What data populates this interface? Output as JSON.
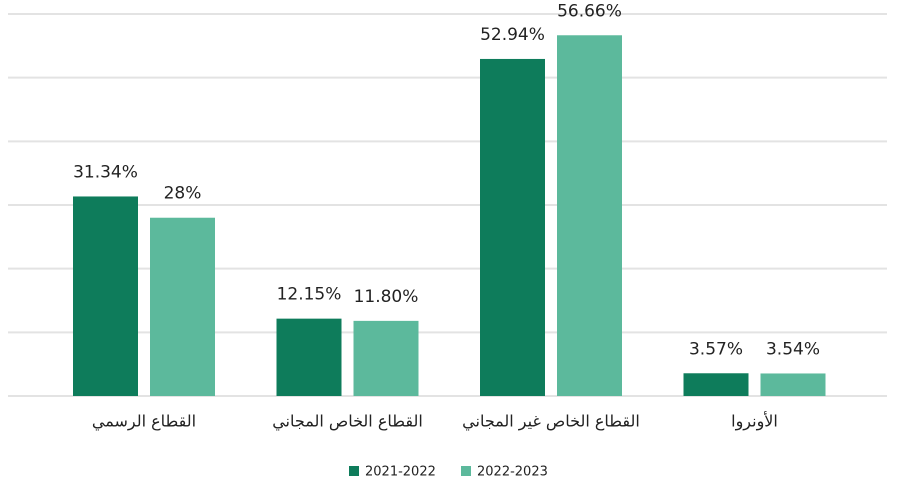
{
  "chart_data": {
    "type": "bar",
    "categories": [
      "القطاع الرسمي",
      "القطاع الخاص المجاني",
      "القطاع الخاص غير المجاني",
      "الأونروا"
    ],
    "series": [
      {
        "name": "2021-2022",
        "color": "#0e7c5b",
        "values": [
          31.34,
          12.15,
          52.94,
          3.57
        ],
        "value_labels": [
          "31.34%",
          "12.15%",
          "52.94%",
          "3.57%"
        ]
      },
      {
        "name": "2022-2023",
        "color": "#5cb99c",
        "values": [
          28,
          11.8,
          56.66,
          3.54
        ],
        "value_labels": [
          "28%",
          "11.80%",
          "56.66%",
          "3.54%"
        ]
      }
    ],
    "ylim": [
      0,
      60
    ],
    "yticks": [
      0,
      10,
      20,
      30,
      40,
      50,
      60
    ],
    "grid": true,
    "legend": "bottom"
  }
}
